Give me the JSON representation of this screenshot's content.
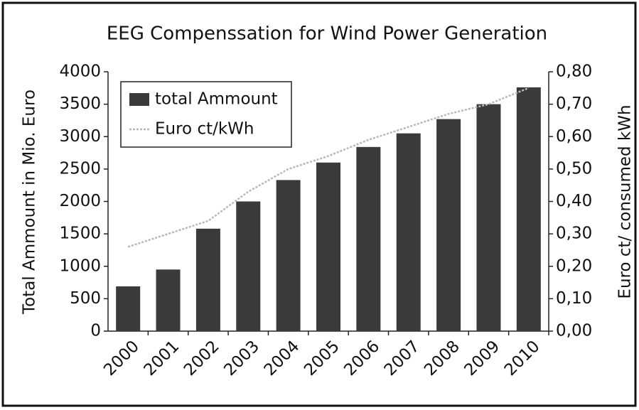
{
  "chart_data": {
    "type": "bar_line",
    "title": "EEG Compenssation for Wind Power Generation",
    "y_label": "Total Ammount in Mio. Euro",
    "y2_label": "Euro ct/ consumed kWh",
    "categories": [
      "2000",
      "2001",
      "2002",
      "2003",
      "2004",
      "2005",
      "2006",
      "2007",
      "2008",
      "2009",
      "2010"
    ],
    "series": [
      {
        "name": "total Ammount",
        "type": "bar",
        "color": "#3a3a3a",
        "values": [
          690,
          950,
          1580,
          2000,
          2330,
          2600,
          2840,
          3050,
          3270,
          3500,
          3760
        ]
      },
      {
        "name": "Euro ct/kWh",
        "type": "line",
        "axis": "y2",
        "color": "#b8b8b8",
        "values": [
          0.26,
          0.3,
          0.34,
          0.43,
          0.5,
          0.54,
          0.59,
          0.63,
          0.67,
          0.7,
          0.75
        ]
      }
    ],
    "ylim": [
      0,
      4000
    ],
    "yticks": [
      0,
      500,
      1000,
      1500,
      2000,
      2500,
      3000,
      3500,
      4000
    ],
    "y2lim": [
      0,
      0.8
    ],
    "y2ticks": [
      {
        "value": 0,
        "label": "0,00"
      },
      {
        "value": 0.1,
        "label": "0,10"
      },
      {
        "value": 0.2,
        "label": "0,20"
      },
      {
        "value": 0.3,
        "label": "0,30"
      },
      {
        "value": 0.4,
        "label": "0,40"
      },
      {
        "value": 0.5,
        "label": "0,50"
      },
      {
        "value": 0.6,
        "label": "0,60"
      },
      {
        "value": 0.7,
        "label": "0,70"
      },
      {
        "value": 0.8,
        "label": "0,80"
      }
    ],
    "legend": "upper left"
  }
}
